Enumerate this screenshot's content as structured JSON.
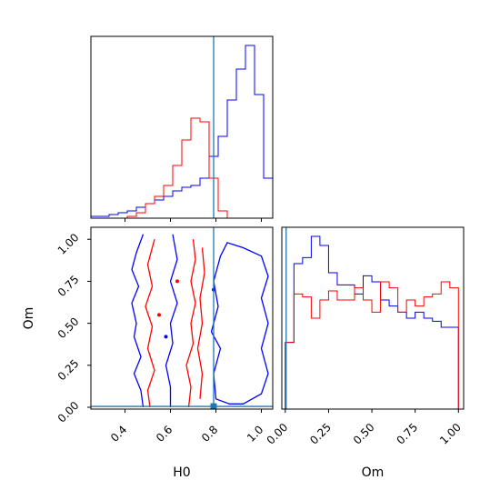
{
  "chart_data": {
    "type": "corner",
    "colors": {
      "run_a": "#0000ff",
      "run_b": "#ff0000",
      "truth": "#1f77b4"
    },
    "parameters": [
      "H0",
      "Om"
    ],
    "truth": {
      "H0": 0.79,
      "Om": 0.005
    },
    "panels": [
      {
        "name": "h0-histogram",
        "type": "histogram",
        "xlim": [
          0.25,
          1.05
        ],
        "xticks": [
          0.4,
          0.6,
          0.8,
          1.0
        ],
        "tick_labels_shown": false,
        "bin_edges": [
          0.17,
          0.21,
          0.25,
          0.29,
          0.33,
          0.37,
          0.41,
          0.45,
          0.49,
          0.53,
          0.57,
          0.61,
          0.65,
          0.69,
          0.73,
          0.77,
          0.81,
          0.85,
          0.89,
          0.93,
          0.97,
          1.01,
          1.05
        ],
        "series": [
          {
            "color_key": "run_a",
            "counts": [
              0,
              0,
              0.01,
              0.01,
              0.02,
              0.03,
              0.04,
              0.06,
              0.08,
              0.1,
              0.12,
              0.15,
              0.17,
              0.18,
              0.22,
              0.34,
              0.45,
              0.65,
              0.82,
              0.95,
              0.68,
              0.22
            ]
          },
          {
            "color_key": "run_b",
            "counts": [
              0,
              0,
              0,
              0,
              0,
              0,
              0.01,
              0.03,
              0.08,
              0.12,
              0.18,
              0.29,
              0.43,
              0.55,
              0.53,
              0.22,
              0.04,
              0,
              0,
              0,
              0,
              0
            ]
          }
        ]
      },
      {
        "name": "om-vs-h0-contour",
        "type": "contour",
        "xlabel": "H0",
        "ylabel": "Om",
        "xlim": [
          0.25,
          1.05
        ],
        "ylim": [
          0.0,
          1.05
        ],
        "xticks": [
          0.4,
          0.6,
          0.8,
          1.0
        ],
        "xtick_labels": [
          "0.4",
          "0.6",
          "0.8",
          "1.0"
        ],
        "yticks": [
          0.0,
          0.25,
          0.5,
          0.75,
          1.0
        ],
        "ytick_labels": [
          "0.00",
          "0.25",
          "0.50",
          "0.75",
          "1.00"
        ],
        "contours": [
          {
            "color_key": "run_a",
            "points": [
              [
                0.48,
                0.0
              ],
              [
                0.47,
                0.1
              ],
              [
                0.44,
                0.2
              ],
              [
                0.47,
                0.3
              ],
              [
                0.44,
                0.42
              ],
              [
                0.45,
                0.5
              ],
              [
                0.43,
                0.62
              ],
              [
                0.46,
                0.72
              ],
              [
                0.43,
                0.82
              ],
              [
                0.45,
                0.92
              ],
              [
                0.48,
                1.03
              ]
            ]
          },
          {
            "color_key": "run_a",
            "points": [
              [
                0.6,
                0.0
              ],
              [
                0.6,
                0.12
              ],
              [
                0.58,
                0.25
              ],
              [
                0.61,
                0.38
              ],
              [
                0.6,
                0.5
              ],
              [
                0.63,
                0.62
              ],
              [
                0.6,
                0.75
              ],
              [
                0.63,
                0.88
              ],
              [
                0.61,
                1.03
              ]
            ]
          },
          {
            "color_key": "run_a",
            "closed": true,
            "points": [
              [
                0.8,
                0.05
              ],
              [
                0.79,
                0.2
              ],
              [
                0.82,
                0.35
              ],
              [
                0.78,
                0.45
              ],
              [
                0.81,
                0.6
              ],
              [
                0.79,
                0.75
              ],
              [
                0.82,
                0.9
              ],
              [
                0.85,
                0.98
              ],
              [
                0.92,
                0.95
              ],
              [
                1.0,
                0.9
              ],
              [
                1.03,
                0.78
              ],
              [
                1.0,
                0.65
              ],
              [
                1.03,
                0.5
              ],
              [
                1.0,
                0.35
              ],
              [
                1.03,
                0.2
              ],
              [
                1.0,
                0.08
              ],
              [
                0.92,
                0.02
              ],
              [
                0.86,
                0.02
              ]
            ]
          },
          {
            "color_key": "run_b",
            "points": [
              [
                0.51,
                0.0
              ],
              [
                0.5,
                0.1
              ],
              [
                0.53,
                0.22
              ],
              [
                0.5,
                0.35
              ],
              [
                0.52,
                0.48
              ],
              [
                0.49,
                0.6
              ],
              [
                0.52,
                0.72
              ],
              [
                0.5,
                0.85
              ],
              [
                0.53,
                1.0
              ]
            ]
          },
          {
            "color_key": "run_b",
            "points": [
              [
                0.68,
                0.0
              ],
              [
                0.69,
                0.12
              ],
              [
                0.67,
                0.25
              ],
              [
                0.7,
                0.38
              ],
              [
                0.69,
                0.5
              ],
              [
                0.71,
                0.62
              ],
              [
                0.69,
                0.75
              ],
              [
                0.71,
                0.88
              ],
              [
                0.7,
                1.0
              ]
            ]
          },
          {
            "color_key": "run_b",
            "points": [
              [
                0.73,
                0.05
              ],
              [
                0.74,
                0.2
              ],
              [
                0.72,
                0.35
              ],
              [
                0.74,
                0.5
              ],
              [
                0.73,
                0.65
              ],
              [
                0.75,
                0.8
              ],
              [
                0.74,
                0.95
              ]
            ]
          }
        ],
        "markers": [
          {
            "color_key": "run_a",
            "x": 0.79,
            "y": 0.7
          },
          {
            "color_key": "run_a",
            "x": 0.58,
            "y": 0.42
          },
          {
            "color_key": "run_b",
            "x": 0.55,
            "y": 0.55
          },
          {
            "color_key": "run_b",
            "x": 0.63,
            "y": 0.75
          }
        ]
      },
      {
        "name": "om-histogram",
        "type": "histogram",
        "xlabel": "Om",
        "xlim": [
          -0.02,
          1.03
        ],
        "xticks": [
          0.0,
          0.25,
          0.5,
          0.75,
          1.0
        ],
        "xtick_labels": [
          "0.00",
          "0.25",
          "0.50",
          "0.75",
          "1.00"
        ],
        "bin_edges": [
          0,
          0.05,
          0.1,
          0.15,
          0.2,
          0.25,
          0.3,
          0.35,
          0.4,
          0.45,
          0.5,
          0.55,
          0.6,
          0.65,
          0.7,
          0.75,
          0.8,
          0.85,
          0.9,
          0.95,
          1.0
        ],
        "series": [
          {
            "color_key": "run_a",
            "counts": [
              0.22,
              0.48,
              0.5,
              0.57,
              0.54,
              0.45,
              0.41,
              0.41,
              0.38,
              0.44,
              0.42,
              0.36,
              0.34,
              0.32,
              0.3,
              0.32,
              0.3,
              0.29,
              0.27,
              0.27
            ]
          },
          {
            "color_key": "run_b",
            "counts": [
              0.22,
              0.38,
              0.37,
              0.3,
              0.36,
              0.39,
              0.36,
              0.36,
              0.4,
              0.36,
              0.32,
              0.42,
              0.4,
              0.32,
              0.36,
              0.34,
              0.37,
              0.38,
              0.42,
              0.4
            ]
          }
        ]
      }
    ]
  }
}
